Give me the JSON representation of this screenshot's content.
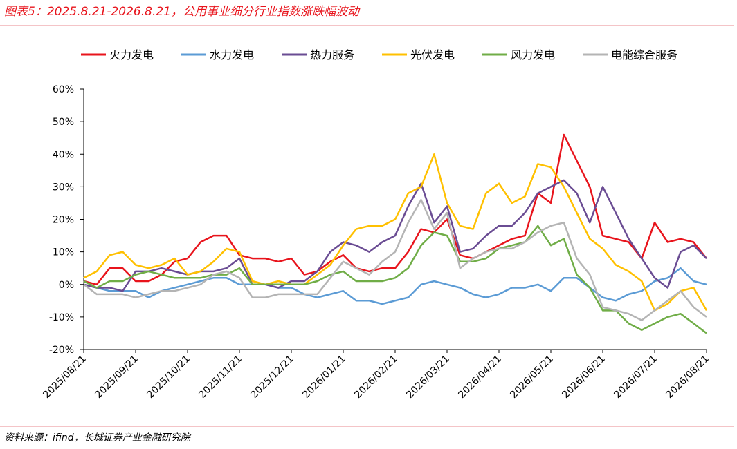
{
  "chart_data": {
    "type": "line",
    "title": "图表5：2025.8.21-2026.8.21，公用事业细分行业指数涨跌幅波动",
    "source": "资料来源：ifind，长城证券产业金融研究院",
    "categories": [
      "2025/08/21",
      null,
      null,
      null,
      "2025/09/21",
      null,
      null,
      null,
      "2025/10/21",
      null,
      null,
      null,
      "2025/11/21",
      null,
      null,
      null,
      "2025/12/21",
      null,
      null,
      null,
      "2026/01/21",
      null,
      null,
      null,
      "2026/02/21",
      null,
      null,
      null,
      "2026/03/21",
      null,
      null,
      null,
      "2026/04/21",
      null,
      null,
      null,
      "2026/05/21",
      null,
      null,
      null,
      "2026/06/21",
      null,
      null,
      null,
      "2026/07/21",
      null,
      null,
      null,
      "2026/08/21"
    ],
    "ylim": [
      -20,
      60
    ],
    "yticks": [
      {
        "value": -20,
        "label": "-20%"
      },
      {
        "value": -10,
        "label": "-10%"
      },
      {
        "value": 0,
        "label": "0%"
      },
      {
        "value": 10,
        "label": "10%"
      },
      {
        "value": 20,
        "label": "20%"
      },
      {
        "value": 30,
        "label": "30%"
      },
      {
        "value": 40,
        "label": "40%"
      },
      {
        "value": 50,
        "label": "50%"
      },
      {
        "value": 60,
        "label": "60%"
      }
    ],
    "legend": "top",
    "series": [
      {
        "name": "火力发电",
        "color": "#e8141c",
        "values": [
          1,
          0,
          5,
          5,
          1,
          1,
          3,
          7,
          8,
          13,
          15,
          15,
          9,
          8,
          8,
          7,
          8,
          3,
          4,
          7,
          9,
          5,
          4,
          5,
          5,
          10,
          17,
          16,
          20,
          9,
          8,
          10,
          12,
          14,
          15,
          28,
          25,
          46,
          38,
          30,
          15,
          14,
          13,
          8,
          19,
          13,
          14,
          13,
          8
        ]
      },
      {
        "name": "水力发电",
        "color": "#5b9bd5",
        "values": [
          0,
          -1,
          -2,
          -2,
          -2,
          -4,
          -2,
          -1,
          0,
          1,
          2,
          2,
          0,
          0,
          0,
          -1,
          -1,
          -3,
          -4,
          -3,
          -2,
          -5,
          -5,
          -6,
          -5,
          -4,
          0,
          1,
          0,
          -1,
          -3,
          -4,
          -3,
          -1,
          -1,
          0,
          -2,
          2,
          2,
          -1,
          -4,
          -5,
          -3,
          -2,
          1,
          2,
          5,
          1,
          0
        ]
      },
      {
        "name": "热力服务",
        "color": "#6a4c93",
        "values": [
          0,
          -1,
          -1,
          -2,
          4,
          4,
          5,
          4,
          3,
          4,
          4,
          5,
          8,
          0,
          0,
          -1,
          1,
          1,
          4,
          10,
          13,
          12,
          10,
          13,
          15,
          24,
          31,
          19,
          24,
          10,
          11,
          15,
          18,
          18,
          22,
          28,
          30,
          32,
          28,
          19,
          30,
          22,
          14,
          8,
          2,
          -1,
          10,
          12,
          8
        ]
      },
      {
        "name": "光伏发电",
        "color": "#ffc000",
        "values": [
          2,
          4,
          9,
          10,
          6,
          5,
          6,
          8,
          3,
          4,
          7,
          11,
          10,
          1,
          0,
          1,
          0,
          0,
          3,
          6,
          12,
          17,
          18,
          18,
          20,
          28,
          30,
          40,
          25,
          18,
          17,
          28,
          31,
          25,
          27,
          37,
          36,
          30,
          22,
          14,
          11,
          6,
          4,
          1,
          -8,
          -6,
          -2,
          -1,
          -8
        ]
      },
      {
        "name": "风力发电",
        "color": "#70ad47",
        "values": [
          1,
          -1,
          1,
          1,
          3,
          4,
          3,
          2,
          2,
          2,
          3,
          3,
          5,
          0,
          0,
          0,
          0,
          0,
          1,
          3,
          4,
          1,
          1,
          1,
          2,
          5,
          12,
          16,
          15,
          7,
          7,
          8,
          11,
          12,
          13,
          18,
          12,
          14,
          3,
          -1,
          -8,
          -8,
          -12,
          -14,
          -12,
          -10,
          -9,
          -12,
          -15
        ]
      },
      {
        "name": "电能综合服务",
        "color": "#b4b4b4",
        "values": [
          0,
          -3,
          -3,
          -3,
          -4,
          -3,
          -2,
          -2,
          -1,
          0,
          3,
          4,
          2,
          -4,
          -4,
          -3,
          -3,
          -3,
          -3,
          2,
          7,
          5,
          3,
          7,
          10,
          19,
          26,
          17,
          22,
          5,
          8,
          10,
          11,
          11,
          13,
          16,
          18,
          19,
          8,
          3,
          -7,
          -8,
          -9,
          -11,
          -8,
          -5,
          -2,
          -7,
          -10
        ]
      }
    ]
  }
}
